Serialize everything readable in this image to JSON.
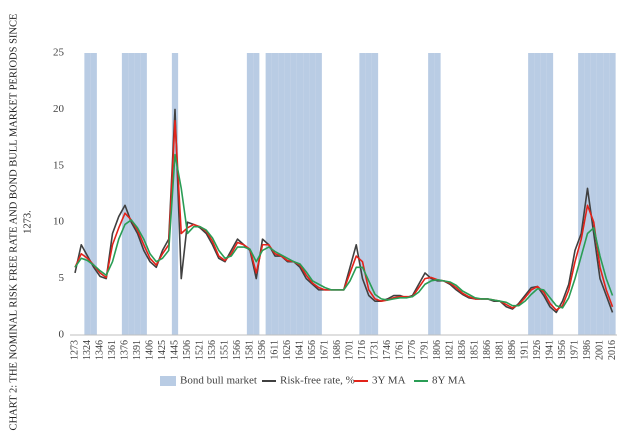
{
  "chart_data": {
    "type": "line",
    "title_lines": [
      "CHART 2: THE NOMINAL RISK FREE RATE AND BOND BULL MARKET PERIODS SINCE",
      "1273."
    ],
    "categories": [
      "1273",
      null,
      "1324",
      null,
      "1346",
      null,
      "1361",
      null,
      "1376",
      null,
      "1391",
      null,
      "1406",
      null,
      "1425",
      null,
      "1445",
      null,
      "1506",
      null,
      "1521",
      null,
      "1536",
      null,
      "1551",
      null,
      "1566",
      null,
      "1581",
      null,
      "1596",
      null,
      "1611",
      null,
      "1626",
      null,
      "1641",
      null,
      "1656",
      null,
      "1671",
      null,
      "1686",
      null,
      "1701",
      null,
      "1716",
      null,
      "1731",
      null,
      "1746",
      null,
      "1761",
      null,
      "1776",
      null,
      "1791",
      null,
      "1806",
      null,
      "1821",
      null,
      "1836",
      null,
      "1851",
      null,
      "1866",
      null,
      "1881",
      null,
      "1896",
      null,
      "1911",
      null,
      "1926",
      null,
      "1941",
      null,
      "1956",
      null,
      "1971",
      null,
      "1986",
      null,
      "2001",
      null,
      "2016"
    ],
    "series": [
      {
        "name": "Bond bull market",
        "kind": "column",
        "color": "#b9cce4",
        "values": [
          0,
          0,
          25,
          25,
          0,
          0,
          0,
          0,
          25,
          25,
          25,
          25,
          0,
          0,
          0,
          0,
          25,
          0,
          0,
          0,
          0,
          0,
          0,
          0,
          0,
          0,
          0,
          0,
          25,
          25,
          0,
          25,
          25,
          25,
          25,
          25,
          25,
          25,
          25,
          25,
          0,
          0,
          0,
          0,
          0,
          0,
          25,
          25,
          25,
          0,
          0,
          0,
          0,
          0,
          0,
          0,
          0,
          25,
          25,
          0,
          0,
          0,
          0,
          0,
          0,
          0,
          0,
          0,
          0,
          0,
          0,
          0,
          0,
          25,
          25,
          25,
          25,
          0,
          0,
          0,
          0,
          25,
          25,
          25,
          25,
          25,
          25
        ]
      },
      {
        "name": "Risk-free rate, %",
        "kind": "line",
        "color": "#404040",
        "values": [
          5.5,
          8,
          7,
          6,
          5.2,
          5,
          9,
          10.5,
          11.5,
          10,
          9,
          7.5,
          6.5,
          6,
          7.5,
          8.5,
          20,
          5,
          10,
          9.8,
          9.5,
          9,
          8,
          6.8,
          6.5,
          7.5,
          8.5,
          8,
          7.5,
          5,
          8.5,
          8,
          7,
          7,
          6.5,
          6.5,
          6,
          5,
          4.5,
          4,
          4,
          4,
          4,
          4,
          6,
          8,
          5,
          3.5,
          3,
          3,
          3.2,
          3.5,
          3.5,
          3.3,
          3.5,
          4.5,
          5.5,
          5,
          4.8,
          4.8,
          4.5,
          4,
          3.6,
          3.3,
          3.2,
          3.2,
          3.2,
          3,
          3,
          2.5,
          2.3,
          2.8,
          3.5,
          4.2,
          4.3,
          3.5,
          2.5,
          2,
          3,
          4.5,
          7.5,
          9,
          13,
          9,
          5,
          3.5,
          2
        ]
      },
      {
        "name": "3Y MA",
        "kind": "line",
        "color": "#e2231a",
        "values": [
          6,
          7.2,
          6.8,
          6.2,
          5.5,
          5.1,
          8,
          9.5,
          10.8,
          10.2,
          9.3,
          8,
          6.8,
          6.2,
          7.2,
          8,
          19,
          9,
          9.5,
          9.8,
          9.6,
          9.2,
          8.3,
          7,
          6.6,
          7.2,
          8.2,
          8,
          7.6,
          5.5,
          8,
          8,
          7.2,
          7,
          6.6,
          6.5,
          6.2,
          5.3,
          4.6,
          4.2,
          4,
          4,
          4,
          4,
          5.5,
          7,
          6.5,
          4,
          3.2,
          3,
          3.1,
          3.3,
          3.4,
          3.4,
          3.4,
          4.2,
          5,
          5.1,
          4.9,
          4.8,
          4.6,
          4.2,
          3.7,
          3.4,
          3.2,
          3.2,
          3.2,
          3.1,
          3,
          2.7,
          2.4,
          2.7,
          3.3,
          4,
          4.3,
          3.8,
          2.8,
          2.2,
          2.6,
          4,
          6.5,
          8.5,
          11.5,
          10,
          6,
          4,
          2.5
        ]
      },
      {
        "name": "8Y MA",
        "kind": "line",
        "color": "#2a9d55",
        "values": [
          6,
          6.8,
          6.6,
          6.2,
          5.7,
          5.3,
          6.5,
          8.5,
          9.8,
          10.2,
          9.5,
          8.5,
          7.2,
          6.5,
          6.8,
          7.5,
          16,
          13,
          9,
          9.6,
          9.6,
          9.3,
          8.6,
          7.5,
          6.8,
          7,
          7.8,
          7.8,
          7.6,
          6.5,
          7.5,
          7.8,
          7.4,
          7.1,
          6.8,
          6.5,
          6.3,
          5.6,
          4.8,
          4.5,
          4.2,
          4,
          4,
          4,
          4.8,
          6,
          6,
          4.8,
          3.6,
          3.2,
          3.1,
          3.2,
          3.3,
          3.3,
          3.4,
          3.8,
          4.5,
          4.8,
          4.9,
          4.8,
          4.7,
          4.4,
          3.9,
          3.6,
          3.3,
          3.2,
          3.2,
          3.1,
          3,
          2.9,
          2.6,
          2.6,
          3,
          3.6,
          4.1,
          4,
          3.3,
          2.6,
          2.4,
          3.3,
          5,
          7,
          9,
          9.5,
          7,
          5,
          3.5
        ]
      }
    ],
    "ylim": [
      0,
      25
    ],
    "yticks": [
      0,
      5,
      10,
      15,
      20,
      25
    ],
    "grid": false,
    "legend": "bottom"
  }
}
